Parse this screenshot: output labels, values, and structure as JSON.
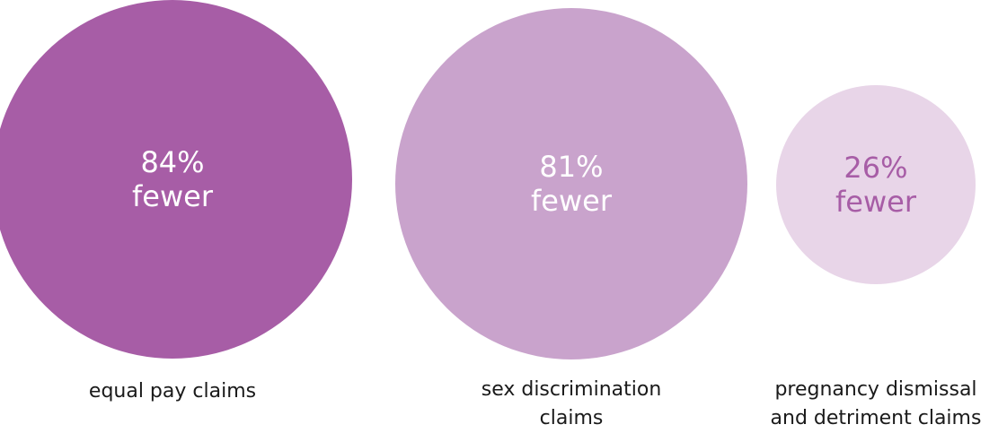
{
  "chart_data": {
    "type": "bubble",
    "title": "",
    "unit": "%",
    "colors": {
      "dark": "#a75da6",
      "medium": "#c9a3cc",
      "light": "#e8d5e8",
      "label_text": "#1a1a1a",
      "value_text_on_dark": "#ffffff",
      "value_text_on_light": "#a75da6"
    },
    "points": [
      {
        "category": "equal pay claims",
        "label_lines": [
          "equal pay claims"
        ],
        "value": 84,
        "value_text": "84%",
        "suffix_text": "fewer",
        "fill": "dark"
      },
      {
        "category": "sex discrimination claims",
        "label_lines": [
          "sex discrimination",
          "claims"
        ],
        "value": 81,
        "value_text": "81%",
        "suffix_text": "fewer",
        "fill": "medium"
      },
      {
        "category": "pregnancy dismissal and detriment claims",
        "label_lines": [
          "pregnancy dismissal",
          "and detriment claims"
        ],
        "value": 26,
        "value_text": "26%",
        "suffix_text": "fewer",
        "fill": "light"
      }
    ]
  }
}
